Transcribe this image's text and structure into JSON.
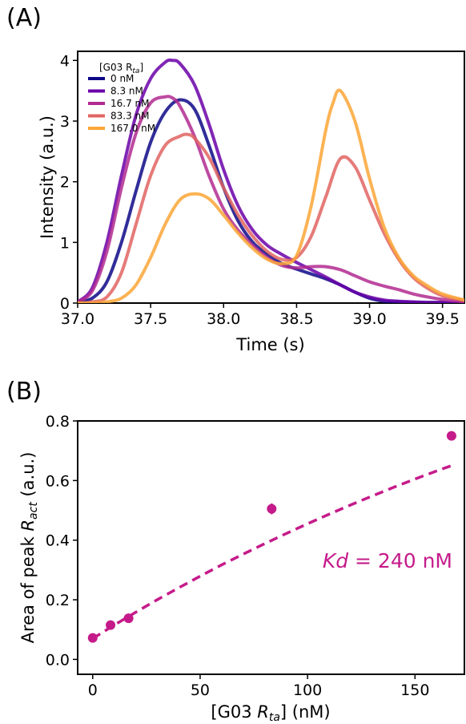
{
  "panel_a": {
    "label": "(A)",
    "chart_data": {
      "type": "line",
      "title": "",
      "xlabel": "Time (s)",
      "ylabel": "Intensity (a.u.)",
      "xlim": [
        37.0,
        39.65
      ],
      "ylim": [
        0,
        4.15
      ],
      "xticks": [
        "37.0",
        "37.5",
        "38.0",
        "38.5",
        "39.0",
        "39.5"
      ],
      "xtick_values": [
        37.0,
        37.5,
        38.0,
        38.5,
        39.0,
        39.5
      ],
      "yticks": [
        "0",
        "1",
        "2",
        "3",
        "4"
      ],
      "ytick_values": [
        0,
        1,
        2,
        3,
        4
      ],
      "grid": false,
      "legend": {
        "title": "[G03 R",
        "title_sub": "ta",
        "title_end": "]",
        "placement": "top-left"
      },
      "series": [
        {
          "name": "0 nM",
          "color": "#0d0887",
          "x": [
            37.0,
            37.1,
            37.2,
            37.3,
            37.4,
            37.5,
            37.6,
            37.7,
            37.8,
            37.9,
            38.0,
            38.1,
            38.2,
            38.3,
            38.4,
            38.5,
            38.6,
            38.7,
            38.8,
            38.9,
            39.0,
            39.1,
            39.2,
            39.3,
            39.4,
            39.5,
            39.65
          ],
          "y": [
            0.02,
            0.08,
            0.35,
            1.0,
            1.85,
            2.65,
            3.15,
            3.35,
            3.2,
            2.6,
            1.9,
            1.35,
            1.0,
            0.8,
            0.65,
            0.56,
            0.48,
            0.4,
            0.3,
            0.18,
            0.08,
            0.03,
            0.02,
            0.01,
            0.01,
            0.01,
            0.0
          ]
        },
        {
          "name": "8.3 nM",
          "color": "#6a00a8",
          "x": [
            37.0,
            37.1,
            37.2,
            37.3,
            37.4,
            37.5,
            37.6,
            37.65,
            37.7,
            37.8,
            37.9,
            38.0,
            38.1,
            38.2,
            38.3,
            38.4,
            38.5,
            38.6,
            38.7,
            38.8,
            38.9,
            39.0,
            39.1,
            39.2,
            39.3,
            39.4,
            39.5,
            39.65
          ],
          "y": [
            0.02,
            0.25,
            1.0,
            2.1,
            3.1,
            3.7,
            3.97,
            4.0,
            3.95,
            3.6,
            2.95,
            2.2,
            1.6,
            1.2,
            0.95,
            0.8,
            0.67,
            0.55,
            0.43,
            0.3,
            0.18,
            0.1,
            0.05,
            0.03,
            0.02,
            0.01,
            0.01,
            0.0
          ]
        },
        {
          "name": "16.7 nM",
          "color": "#b12a90",
          "x": [
            37.0,
            37.1,
            37.2,
            37.3,
            37.4,
            37.5,
            37.6,
            37.65,
            37.7,
            37.8,
            37.9,
            38.0,
            38.1,
            38.2,
            38.3,
            38.4,
            38.5,
            38.6,
            38.7,
            38.8,
            38.9,
            39.0,
            39.1,
            39.2,
            39.3,
            39.4,
            39.5,
            39.65
          ],
          "y": [
            0.02,
            0.2,
            0.85,
            1.9,
            2.8,
            3.3,
            3.4,
            3.38,
            3.25,
            2.75,
            2.1,
            1.55,
            1.2,
            0.95,
            0.75,
            0.62,
            0.58,
            0.6,
            0.6,
            0.55,
            0.45,
            0.35,
            0.28,
            0.22,
            0.15,
            0.1,
            0.06,
            0.02
          ]
        },
        {
          "name": "83.3 nM",
          "color": "#e16462",
          "x": [
            37.0,
            37.1,
            37.2,
            37.3,
            37.4,
            37.5,
            37.6,
            37.7,
            37.75,
            37.8,
            37.9,
            38.0,
            38.1,
            38.2,
            38.3,
            38.4,
            38.5,
            38.6,
            38.7,
            38.8,
            38.9,
            39.0,
            39.1,
            39.2,
            39.3,
            39.4,
            39.5,
            39.65
          ],
          "y": [
            0.0,
            0.02,
            0.1,
            0.5,
            1.3,
            2.1,
            2.6,
            2.75,
            2.78,
            2.72,
            2.4,
            1.9,
            1.45,
            1.1,
            0.85,
            0.72,
            0.75,
            1.1,
            1.75,
            2.38,
            2.25,
            1.7,
            1.15,
            0.72,
            0.42,
            0.24,
            0.12,
            0.04
          ]
        },
        {
          "name": "167.0 nM",
          "color": "#fca636",
          "x": [
            37.0,
            37.1,
            37.2,
            37.3,
            37.4,
            37.5,
            37.6,
            37.7,
            37.8,
            37.9,
            38.0,
            38.1,
            38.2,
            38.3,
            38.4,
            38.5,
            38.6,
            38.7,
            38.75,
            38.8,
            38.9,
            39.0,
            39.1,
            39.2,
            39.3,
            39.4,
            39.5,
            39.65
          ],
          "y": [
            0.0,
            0.0,
            0.02,
            0.08,
            0.3,
            0.75,
            1.3,
            1.7,
            1.8,
            1.72,
            1.45,
            1.15,
            0.9,
            0.72,
            0.65,
            0.78,
            1.6,
            2.85,
            3.3,
            3.5,
            3.0,
            2.05,
            1.25,
            0.75,
            0.45,
            0.28,
            0.15,
            0.05
          ]
        }
      ]
    }
  },
  "panel_b": {
    "label": "(B)",
    "chart_data": {
      "type": "scatter",
      "title": "",
      "xlabel_pre": "[G03 ",
      "xlabel_r": "R",
      "xlabel_sub": "ta",
      "xlabel_post": "] (nM)",
      "ylabel_pre": "Area of peak ",
      "ylabel_r": "R",
      "ylabel_sub": "act",
      "ylabel_post": " (a.u.)",
      "xlim": [
        -7,
        173
      ],
      "ylim": [
        -0.05,
        0.8
      ],
      "xticks": [
        "0",
        "50",
        "100",
        "150"
      ],
      "xtick_values": [
        0,
        50,
        100,
        150
      ],
      "yticks": [
        "0.0",
        "0.2",
        "0.4",
        "0.6",
        "0.8"
      ],
      "ytick_values": [
        0.0,
        0.2,
        0.4,
        0.6,
        0.8
      ],
      "grid": false,
      "color": "#c51b8a",
      "points": {
        "x": [
          0,
          8.3,
          16.7,
          83.3,
          167.0
        ],
        "y": [
          0.072,
          0.115,
          0.138,
          0.505,
          0.75
        ],
        "err": [
          0.008,
          0.012,
          0.01,
          0.018,
          0.008
        ]
      },
      "fit": {
        "x": [
          0,
          10,
          20,
          30,
          40,
          50,
          60,
          70,
          80,
          90,
          100,
          110,
          120,
          130,
          140,
          150,
          160,
          167
        ],
        "y": [
          0.07,
          0.115,
          0.158,
          0.2,
          0.24,
          0.279,
          0.317,
          0.353,
          0.388,
          0.422,
          0.455,
          0.487,
          0.518,
          0.548,
          0.577,
          0.605,
          0.632,
          0.65
        ]
      },
      "annotation": {
        "italic": "Kd",
        "rest": " = 240 nM"
      }
    }
  }
}
